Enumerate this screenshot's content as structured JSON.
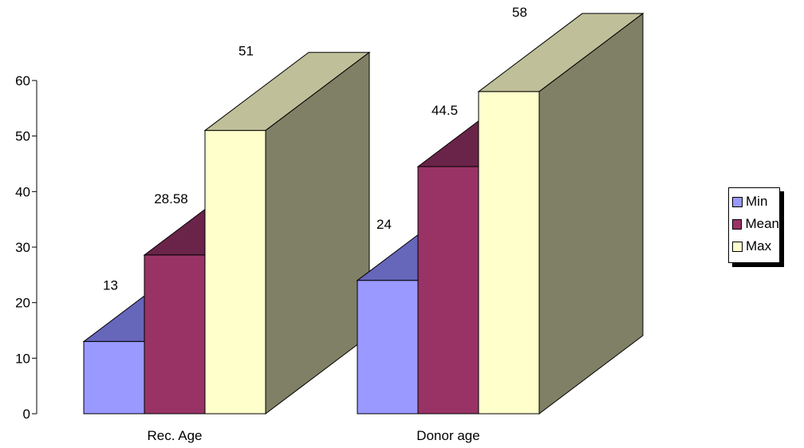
{
  "chart_data": {
    "type": "bar",
    "title": "",
    "xlabel": "",
    "ylabel": "",
    "categories": [
      "Rec. Age",
      "Donor age"
    ],
    "ylim": [
      0,
      60
    ],
    "yticks": [
      "0",
      "10",
      "20",
      "30",
      "40",
      "50",
      "60"
    ],
    "series": [
      {
        "name": "Min",
        "values": [
          13,
          24
        ],
        "labels": [
          "13",
          "24"
        ],
        "color": "#9999ff"
      },
      {
        "name": "Mean",
        "values": [
          28.58,
          44.5
        ],
        "labels": [
          "28.58",
          "44.5"
        ],
        "color": "#993366"
      },
      {
        "name": "Max",
        "values": [
          51,
          58
        ],
        "labels": [
          "51",
          "58"
        ],
        "color": "#ffffcc"
      }
    ],
    "legend_position": "right",
    "style": "3d-clustered"
  }
}
